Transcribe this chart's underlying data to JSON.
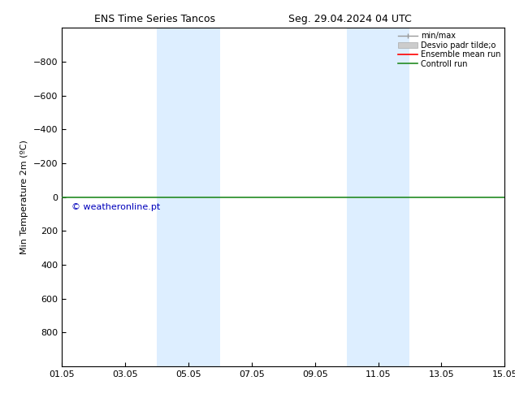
{
  "title_left": "ENS Time Series Tancos",
  "title_right": "Seg. 29.04.2024 04 UTC",
  "ylabel": "Min Temperature 2m (ºC)",
  "ylim_bottom": 1000,
  "ylim_top": -1000,
  "yticks": [
    -800,
    -600,
    -400,
    -200,
    0,
    200,
    400,
    600,
    800
  ],
  "xlim": [
    0,
    14
  ],
  "xtick_positions": [
    0,
    2,
    4,
    6,
    8,
    10,
    12,
    14
  ],
  "xtick_labels": [
    "01.05",
    "03.05",
    "05.05",
    "07.05",
    "09.05",
    "11.05",
    "13.05",
    "15.05"
  ],
  "shaded_regions": [
    {
      "start": 3,
      "end": 5,
      "color": "#ddeeff"
    },
    {
      "start": 9,
      "end": 11,
      "color": "#ddeeff"
    }
  ],
  "hline_green": {
    "y": 0,
    "color": "#228B22",
    "lw": 1.2
  },
  "hline_red": {
    "y": 0,
    "color": "#ff2020",
    "lw": 0.8
  },
  "watermark_text": "© weatheronline.pt",
  "watermark_color": "#0000bb",
  "watermark_data_x": 0.3,
  "watermark_data_y": 60,
  "legend_labels": [
    "min/max",
    "Desvio padr tilde;o",
    "Ensemble mean run",
    "Controll run"
  ],
  "legend_colors": [
    "#999999",
    "#cccccc",
    "#ff0000",
    "#228B22"
  ],
  "legend_styles": [
    "errbar",
    "box",
    "line",
    "line"
  ],
  "bg_color": "#ffffff",
  "font_size": 8,
  "title_font_size": 9
}
